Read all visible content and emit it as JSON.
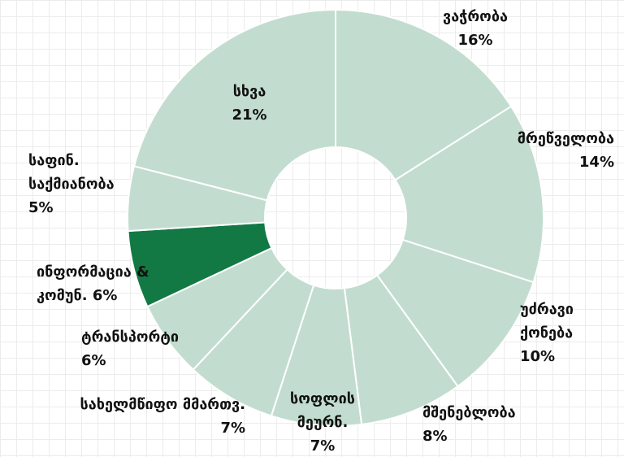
{
  "chart_data": {
    "type": "donut",
    "categories": [
      "ვაჭრობა",
      "მრეწველობა",
      "უძრავი ქონება",
      "მშენებლობა",
      "სოფლის მეურნ.",
      "სახელმწიფო მმართვ.",
      "ტრანსპორტი",
      "ინფორმაცია & კომუნ.",
      "საფინ. საქმიანობა",
      "სხვა"
    ],
    "values": [
      16,
      14,
      10,
      8,
      7,
      7,
      6,
      6,
      5,
      21
    ],
    "value_labels": [
      "16%",
      "14%",
      "10%",
      "8%",
      "7%",
      "7%",
      "6%",
      "6%",
      "5%",
      "21%"
    ],
    "colors": [
      "#c2ddcf",
      "#c2ddcf",
      "#c2ddcf",
      "#c2ddcf",
      "#c2ddcf",
      "#c2ddcf",
      "#c2ddcf",
      "#127944",
      "#c2ddcf",
      "#c2ddcf"
    ]
  }
}
